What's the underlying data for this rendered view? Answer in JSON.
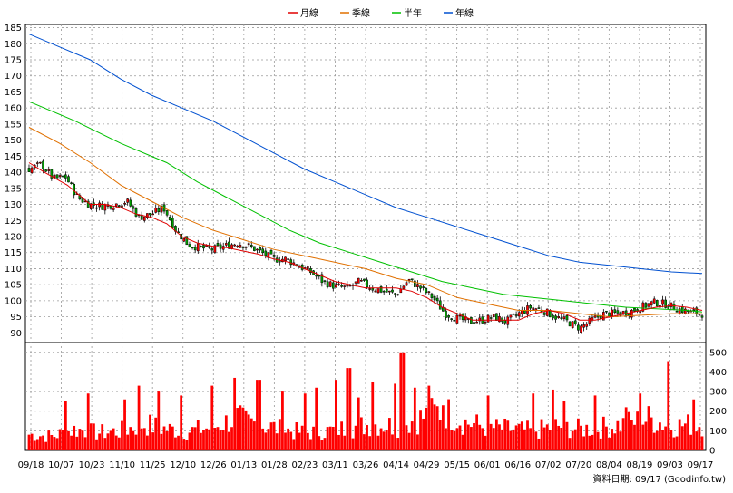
{
  "legend": [
    {
      "name": "月線",
      "color": "#e00000"
    },
    {
      "name": "季線",
      "color": "#e07000"
    },
    {
      "name": "半年",
      "color": "#00c000"
    },
    {
      "name": "年線",
      "color": "#0050d0"
    }
  ],
  "footer": "資料日期: 09/17  (Goodinfo.tw)",
  "chart_data": {
    "type": "candlestick+line+bar",
    "price_axis": {
      "ylim": [
        87,
        186
      ],
      "ticks": [
        90,
        95,
        100,
        105,
        110,
        115,
        120,
        125,
        130,
        135,
        140,
        145,
        150,
        155,
        160,
        165,
        170,
        175,
        180,
        185
      ],
      "side": "left"
    },
    "volume_axis": {
      "ylim": [
        0,
        550
      ],
      "ticks": [
        0,
        100,
        200,
        300,
        400,
        500
      ],
      "side": "right"
    },
    "x_ticks": [
      "09/18",
      "10/07",
      "10/23",
      "11/10",
      "11/25",
      "12/10",
      "12/26",
      "01/13",
      "01/28",
      "02/23",
      "03/11",
      "03/26",
      "04/14",
      "04/29",
      "05/15",
      "06/01",
      "06/16",
      "07/02",
      "07/20",
      "08/04",
      "08/19",
      "09/03",
      "09/17"
    ],
    "candle_count": 240,
    "close_path": [
      [
        0,
        141
      ],
      [
        8,
        142.5
      ],
      [
        16,
        138
      ],
      [
        24,
        138.5
      ],
      [
        32,
        132
      ],
      [
        40,
        130
      ],
      [
        48,
        129.5
      ],
      [
        56,
        130
      ],
      [
        64,
        131
      ],
      [
        72,
        126
      ],
      [
        80,
        127
      ],
      [
        88,
        129
      ],
      [
        96,
        122
      ],
      [
        104,
        117.5
      ],
      [
        112,
        116.5
      ],
      [
        120,
        116
      ],
      [
        128,
        117
      ],
      [
        136,
        118
      ],
      [
        144,
        117
      ],
      [
        152,
        115
      ],
      [
        160,
        113
      ],
      [
        168,
        113
      ],
      [
        176,
        111
      ],
      [
        184,
        109
      ],
      [
        192,
        106
      ],
      [
        200,
        104.5
      ],
      [
        208,
        104
      ],
      [
        216,
        106
      ],
      [
        224,
        104
      ],
      [
        232,
        103
      ],
      [
        240,
        102
      ],
      [
        248,
        106.5
      ],
      [
        256,
        104
      ],
      [
        264,
        101
      ],
      [
        272,
        96
      ],
      [
        280,
        94.5
      ],
      [
        288,
        93.5
      ],
      [
        296,
        94
      ],
      [
        304,
        95
      ],
      [
        312,
        93.5
      ],
      [
        320,
        96
      ],
      [
        328,
        98
      ],
      [
        336,
        97
      ],
      [
        344,
        95
      ],
      [
        352,
        93.5
      ],
      [
        360,
        91.5
      ],
      [
        368,
        94
      ],
      [
        376,
        96
      ],
      [
        384,
        96
      ],
      [
        392,
        96.5
      ],
      [
        400,
        98
      ],
      [
        408,
        99.5
      ],
      [
        416,
        99
      ],
      [
        424,
        97.5
      ],
      [
        432,
        96.5
      ],
      [
        440,
        96
      ]
    ],
    "ma_month": [
      [
        0,
        143
      ],
      [
        10,
        140
      ],
      [
        25,
        136
      ],
      [
        40,
        130
      ],
      [
        50,
        130
      ],
      [
        60,
        129
      ],
      [
        70,
        127
      ],
      [
        80,
        126
      ],
      [
        90,
        124
      ],
      [
        100,
        120
      ],
      [
        110,
        118
      ],
      [
        120,
        117
      ],
      [
        130,
        116.5
      ],
      [
        140,
        115.5
      ],
      [
        150,
        114.5
      ],
      [
        160,
        113
      ],
      [
        170,
        112
      ],
      [
        180,
        110
      ],
      [
        190,
        108
      ],
      [
        200,
        106
      ],
      [
        210,
        105
      ],
      [
        220,
        104
      ],
      [
        230,
        104
      ],
      [
        240,
        104
      ],
      [
        250,
        103
      ],
      [
        260,
        101
      ],
      [
        270,
        98
      ],
      [
        280,
        96
      ],
      [
        290,
        94
      ],
      [
        300,
        94
      ],
      [
        310,
        94
      ],
      [
        320,
        94
      ],
      [
        330,
        96
      ],
      [
        340,
        97
      ],
      [
        350,
        96
      ],
      [
        360,
        94
      ],
      [
        370,
        94
      ],
      [
        380,
        95
      ],
      [
        390,
        96
      ],
      [
        400,
        97
      ],
      [
        410,
        98
      ],
      [
        420,
        98.5
      ],
      [
        430,
        98
      ],
      [
        440,
        97
      ]
    ],
    "ma_quarter": [
      [
        0,
        154
      ],
      [
        20,
        149
      ],
      [
        40,
        143
      ],
      [
        60,
        136
      ],
      [
        80,
        131
      ],
      [
        100,
        126
      ],
      [
        120,
        122
      ],
      [
        140,
        119
      ],
      [
        160,
        116
      ],
      [
        180,
        114
      ],
      [
        200,
        112
      ],
      [
        220,
        110
      ],
      [
        240,
        107
      ],
      [
        260,
        105
      ],
      [
        280,
        101
      ],
      [
        300,
        99
      ],
      [
        320,
        97
      ],
      [
        340,
        97
      ],
      [
        360,
        96
      ],
      [
        380,
        95
      ],
      [
        400,
        95.5
      ],
      [
        420,
        96
      ],
      [
        440,
        96
      ]
    ],
    "ma_half": [
      [
        0,
        162
      ],
      [
        30,
        156
      ],
      [
        60,
        149
      ],
      [
        90,
        143
      ],
      [
        110,
        137
      ],
      [
        130,
        132
      ],
      [
        150,
        127
      ],
      [
        170,
        122
      ],
      [
        190,
        118
      ],
      [
        210,
        115
      ],
      [
        230,
        112
      ],
      [
        250,
        109
      ],
      [
        270,
        106
      ],
      [
        290,
        104
      ],
      [
        310,
        102
      ],
      [
        330,
        101
      ],
      [
        350,
        100
      ],
      [
        370,
        99
      ],
      [
        390,
        98
      ],
      [
        410,
        97.5
      ],
      [
        430,
        97
      ],
      [
        440,
        96.5
      ]
    ],
    "ma_year": [
      [
        0,
        183
      ],
      [
        20,
        179
      ],
      [
        40,
        175
      ],
      [
        60,
        169
      ],
      [
        80,
        164
      ],
      [
        100,
        160
      ],
      [
        120,
        156
      ],
      [
        140,
        151
      ],
      [
        160,
        146
      ],
      [
        180,
        141
      ],
      [
        200,
        137
      ],
      [
        220,
        133
      ],
      [
        240,
        129
      ],
      [
        260,
        126
      ],
      [
        280,
        123
      ],
      [
        300,
        120
      ],
      [
        320,
        117
      ],
      [
        340,
        114
      ],
      [
        360,
        112
      ],
      [
        380,
        111
      ],
      [
        400,
        110
      ],
      [
        420,
        109
      ],
      [
        440,
        108.5
      ]
    ],
    "volume_profile": [
      [
        0,
        90
      ],
      [
        15,
        80
      ],
      [
        30,
        120
      ],
      [
        45,
        100
      ],
      [
        60,
        110
      ],
      [
        75,
        150
      ],
      [
        90,
        120
      ],
      [
        105,
        110
      ],
      [
        120,
        130
      ],
      [
        135,
        180
      ],
      [
        150,
        150
      ],
      [
        165,
        120
      ],
      [
        180,
        100
      ],
      [
        195,
        110
      ],
      [
        210,
        130
      ],
      [
        225,
        150
      ],
      [
        240,
        140
      ],
      [
        255,
        180
      ],
      [
        270,
        230
      ],
      [
        285,
        160
      ],
      [
        300,
        130
      ],
      [
        315,
        120
      ],
      [
        330,
        110
      ],
      [
        345,
        140
      ],
      [
        360,
        120
      ],
      [
        375,
        130
      ],
      [
        390,
        150
      ],
      [
        405,
        180
      ],
      [
        420,
        140
      ],
      [
        440,
        150
      ]
    ],
    "volume_spikes": [
      [
        24,
        250
      ],
      [
        38,
        290
      ],
      [
        62,
        260
      ],
      [
        72,
        330
      ],
      [
        85,
        300
      ],
      [
        100,
        280
      ],
      [
        120,
        330
      ],
      [
        135,
        370
      ],
      [
        150,
        360
      ],
      [
        165,
        300
      ],
      [
        180,
        290
      ],
      [
        187,
        320
      ],
      [
        200,
        360
      ],
      [
        209,
        420
      ],
      [
        215,
        270
      ],
      [
        225,
        350
      ],
      [
        240,
        340
      ],
      [
        244,
        500
      ],
      [
        252,
        320
      ],
      [
        262,
        330
      ],
      [
        270,
        230
      ],
      [
        300,
        280
      ],
      [
        330,
        290
      ],
      [
        343,
        310
      ],
      [
        350,
        250
      ],
      [
        370,
        280
      ],
      [
        390,
        220
      ],
      [
        400,
        290
      ],
      [
        418,
        455
      ],
      [
        435,
        260
      ]
    ]
  }
}
